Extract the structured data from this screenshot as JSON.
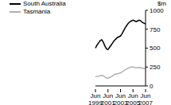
{
  "chart_data": {
    "type": "line",
    "y_label": "$m",
    "categories": [
      "Jun 1999",
      null,
      null,
      null,
      null,
      null,
      null,
      null,
      "Jun 2001",
      null,
      null,
      null,
      null,
      null,
      null,
      null,
      "Jun 2003",
      null,
      null,
      null,
      null,
      null,
      null,
      null,
      "Jun 2005",
      null,
      null,
      null,
      null,
      null,
      null,
      null,
      "Jun 2007"
    ],
    "series": [
      {
        "name": "South Australia",
        "color": "#000000",
        "values": [
          500,
          540,
          570,
          600,
          610,
          580,
          530,
          490,
          480,
          510,
          540,
          570,
          600,
          620,
          640,
          650,
          660,
          690,
          730,
          770,
          800,
          830,
          850,
          860,
          870,
          860,
          850,
          860,
          870,
          860,
          840,
          830,
          820
        ]
      },
      {
        "name": "Tasmania",
        "color": "#b0b0b0",
        "values": [
          120,
          125,
          130,
          135,
          140,
          135,
          120,
          105,
          100,
          110,
          120,
          135,
          150,
          155,
          160,
          165,
          170,
          185,
          200,
          215,
          225,
          235,
          245,
          250,
          250,
          245,
          240,
          240,
          245,
          240,
          235,
          230,
          230
        ]
      }
    ],
    "ylim": [
      0,
      1000
    ],
    "yticks": [
      0,
      250,
      500,
      750,
      1000
    ],
    "grid": false,
    "legend": "top-left"
  }
}
